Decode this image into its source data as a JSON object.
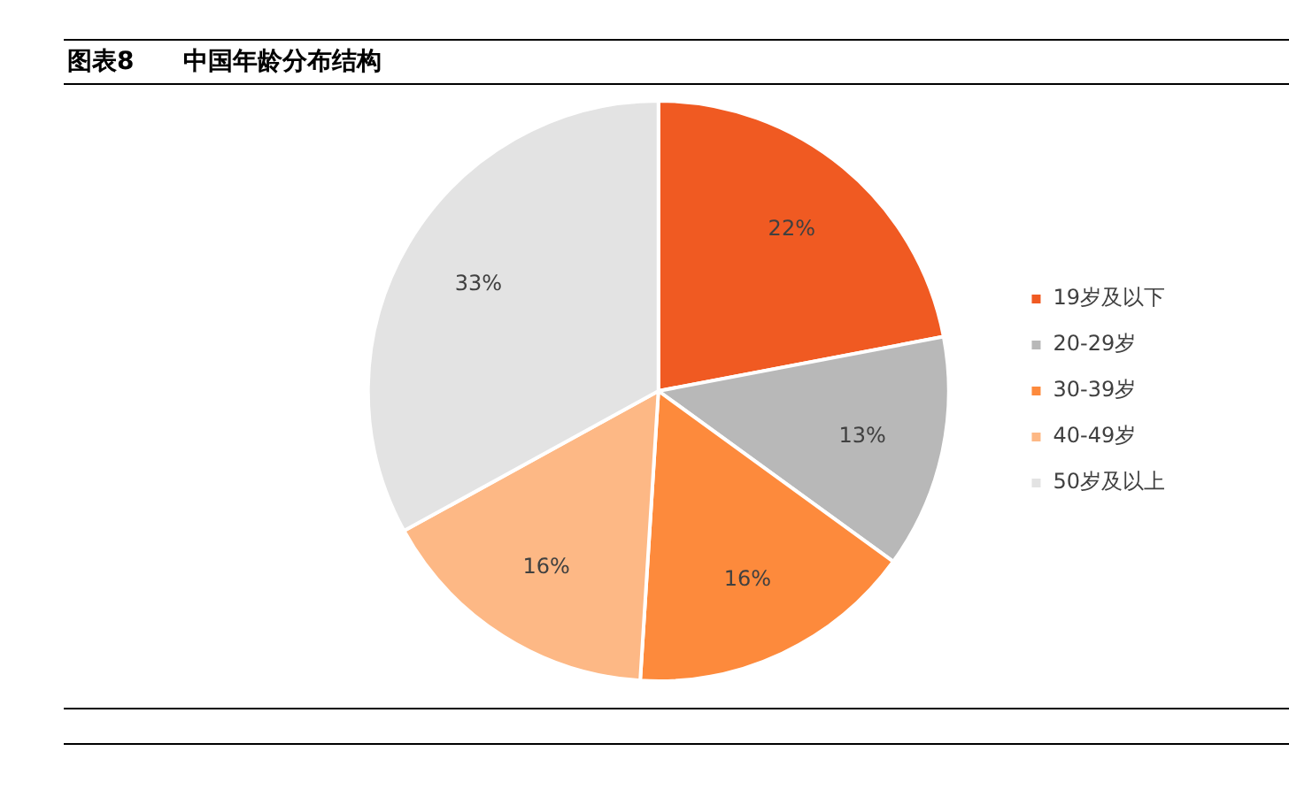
{
  "chart_data": {
    "type": "pie",
    "title": "图表8　　中国年龄分布结构",
    "categories": [
      "19岁及以下",
      "20-29岁",
      "30-39岁",
      "40-49岁",
      "50岁及以上"
    ],
    "values": [
      22,
      13,
      16,
      16,
      33
    ],
    "colors": [
      "#f05a22",
      "#b8b8b8",
      "#fd8a3c",
      "#fdb885",
      "#e3e3e3"
    ],
    "value_labels": [
      "22%",
      "13%",
      "16%",
      "16%",
      "33%"
    ],
    "legend": "right"
  }
}
